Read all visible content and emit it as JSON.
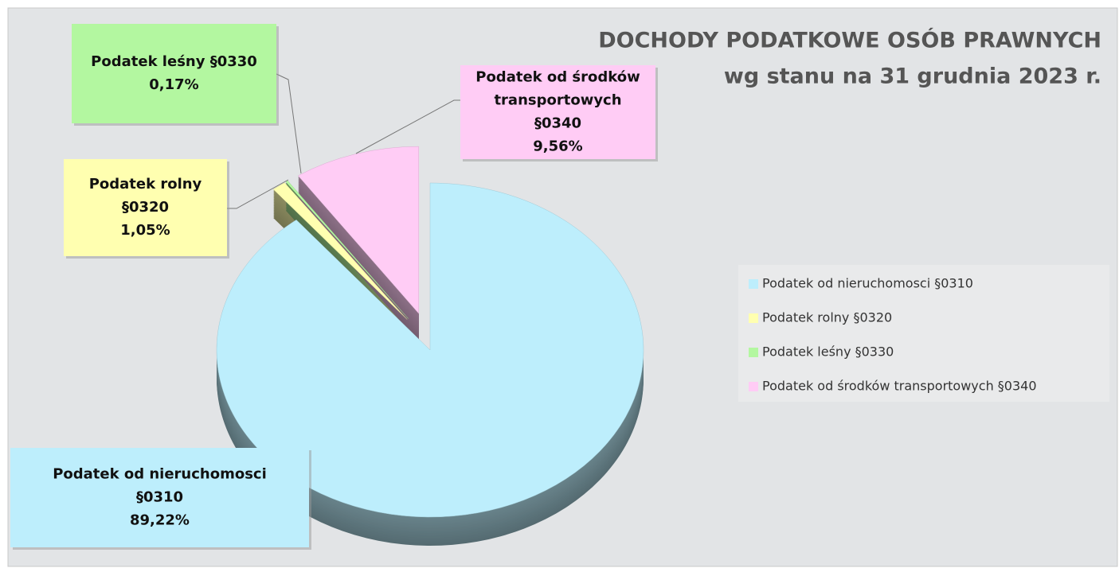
{
  "chart_data": {
    "type": "pie",
    "title": "DOCHODY PODATKOWE OSÓB PRAWNYCH",
    "subtitle": "wg stanu na 31 grudnia 2023 r.",
    "categories": [
      "Podatek od nieruchomosci  §0310",
      "Podatek rolny §0320",
      "Podatek leśny §0330",
      "Podatek od środków transportowych  §0340"
    ],
    "values": [
      89.22,
      1.05,
      0.17,
      9.56
    ],
    "value_labels": [
      "89,22%",
      "1,05%",
      "0,17%",
      "9,56%"
    ],
    "label_lines": [
      [
        "Podatek od nieruchomosci",
        "§0310"
      ],
      [
        "Podatek rolny",
        "§0320"
      ],
      [
        "Podatek leśny §0330"
      ],
      [
        "Podatek od środków",
        "transportowych",
        "§0340"
      ]
    ],
    "colors": [
      "#bdeefc",
      "#ffffb0",
      "#b3f7a0",
      "#ffccf5"
    ],
    "legend": "right"
  }
}
